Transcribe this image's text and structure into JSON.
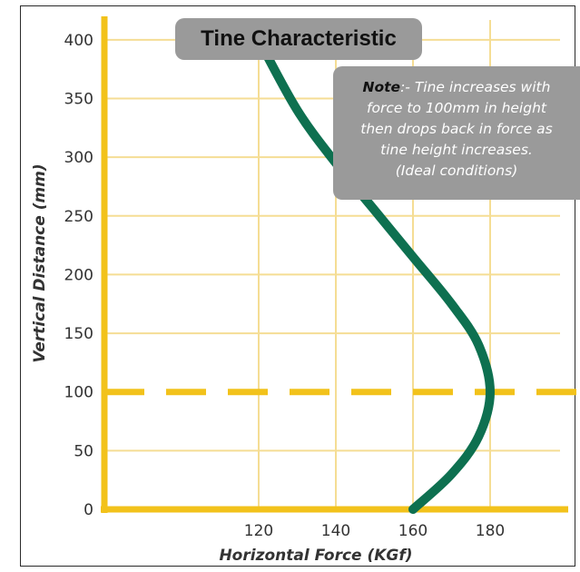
{
  "chart_data": {
    "type": "line",
    "title": "Tine Characteristic",
    "xlabel": "Horizontal Force (KGf)",
    "ylabel": "Vertical Distance (mm)",
    "x_ticks": [
      120,
      140,
      160,
      180
    ],
    "y_ticks": [
      0,
      50,
      100,
      150,
      200,
      250,
      300,
      350,
      400
    ],
    "xlim": [
      80,
      200
    ],
    "ylim": [
      0,
      420
    ],
    "grid": true,
    "reference_line": {
      "y": 100,
      "style": "dashed"
    },
    "series": [
      {
        "x": [
          160,
          170,
          177,
          180,
          177,
          170,
          160,
          150,
          140,
          130,
          120
        ],
        "y": [
          0,
          30,
          62,
          100,
          140,
          175,
          215,
          255,
          295,
          340,
          400
        ]
      }
    ],
    "note": {
      "label": "Note",
      "text": ":- Tine increases with\nforce to 100mm in height\nthen drops back in force as\ntine height increases.\n(Ideal conditions)"
    },
    "colors": {
      "axis": "#f2c21b",
      "grid": "#f5dd94",
      "curve": "#0e7050",
      "box": "#9a9a9a"
    }
  }
}
